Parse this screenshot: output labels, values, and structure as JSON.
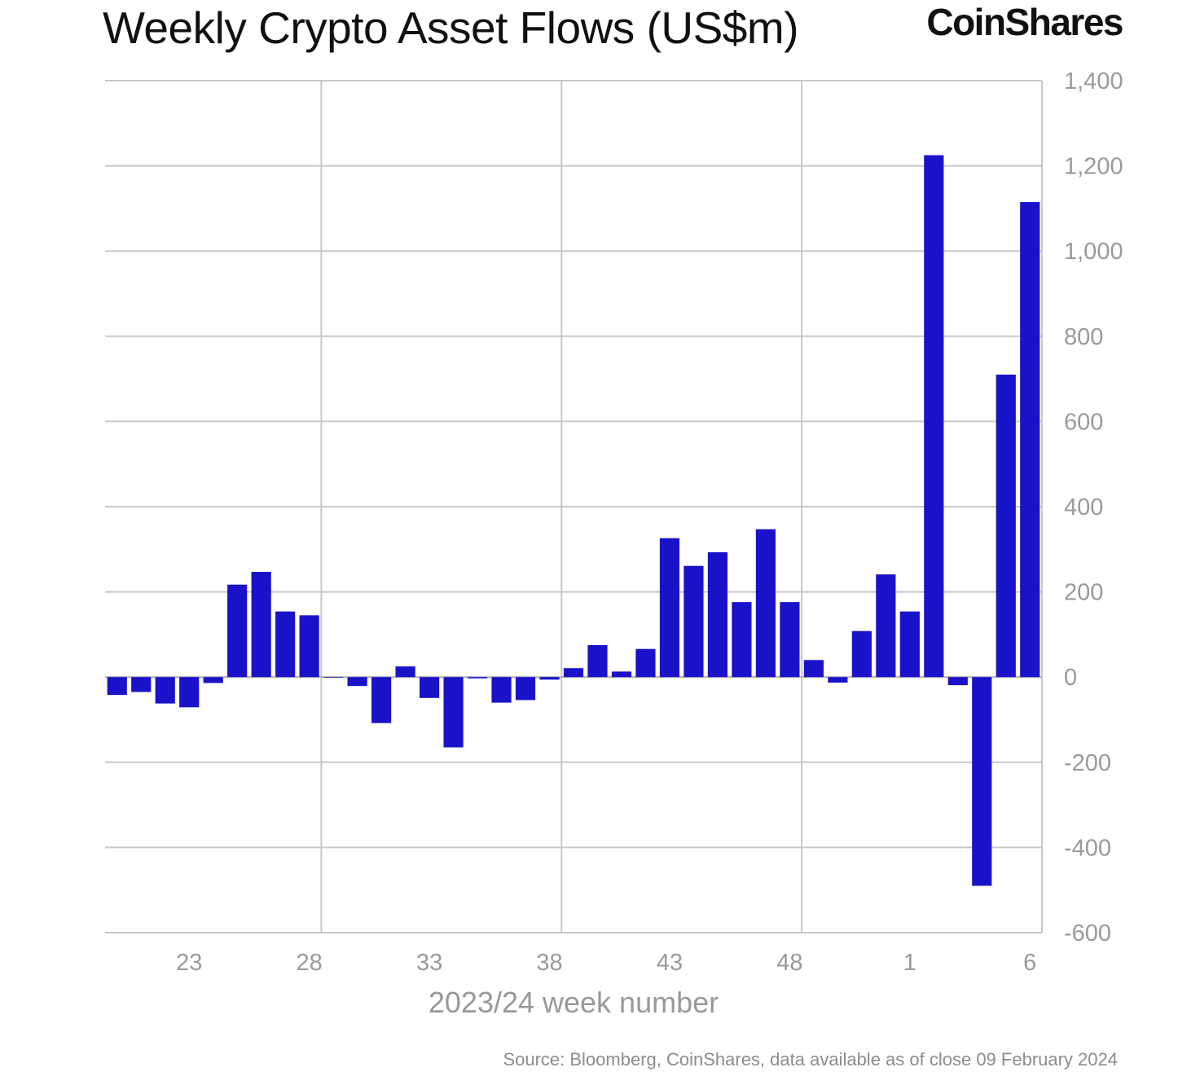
{
  "brand": "CoinShares",
  "source_note": "Source: Bloomberg, CoinShares, data available as of close 09 February 2024",
  "chart_data": {
    "type": "bar",
    "title": "Weekly Crypto Asset Flows (US$m)",
    "xlabel": "2023/24 week number",
    "ylabel": "",
    "ylim": [
      -600,
      1400
    ],
    "y_ticks": [
      1400,
      1200,
      1000,
      800,
      600,
      400,
      200,
      0,
      -200,
      -400,
      -600
    ],
    "y_tick_labels": [
      "1,400",
      "1,200",
      "1,000",
      "800",
      "600",
      "400",
      "200",
      "0",
      "-200",
      "-400",
      "-600"
    ],
    "y_axis_side": "right",
    "x_tick_labels": [
      "23",
      "28",
      "33",
      "38",
      "43",
      "48",
      "1",
      "6"
    ],
    "grid": true,
    "bar_color": "#1a12c9",
    "categories": [
      "20",
      "21",
      "22",
      "23",
      "24",
      "25",
      "26",
      "27",
      "28",
      "29",
      "30",
      "31",
      "32",
      "33",
      "34",
      "35",
      "36",
      "37",
      "38",
      "39",
      "40",
      "41",
      "42",
      "43",
      "44",
      "45",
      "46",
      "47",
      "48",
      "49",
      "50",
      "51",
      "52",
      "1",
      "2",
      "3",
      "4",
      "5",
      "6"
    ],
    "values": [
      -42,
      -35,
      -62,
      -71,
      -14,
      217,
      247,
      154,
      145,
      0,
      -21,
      -108,
      25,
      -49,
      -165,
      -3,
      -60,
      -54,
      -6,
      21,
      75,
      13,
      66,
      326,
      261,
      293,
      176,
      347,
      176,
      40,
      -13,
      108,
      241,
      154,
      1225,
      -19,
      -490,
      710,
      1115
    ]
  }
}
